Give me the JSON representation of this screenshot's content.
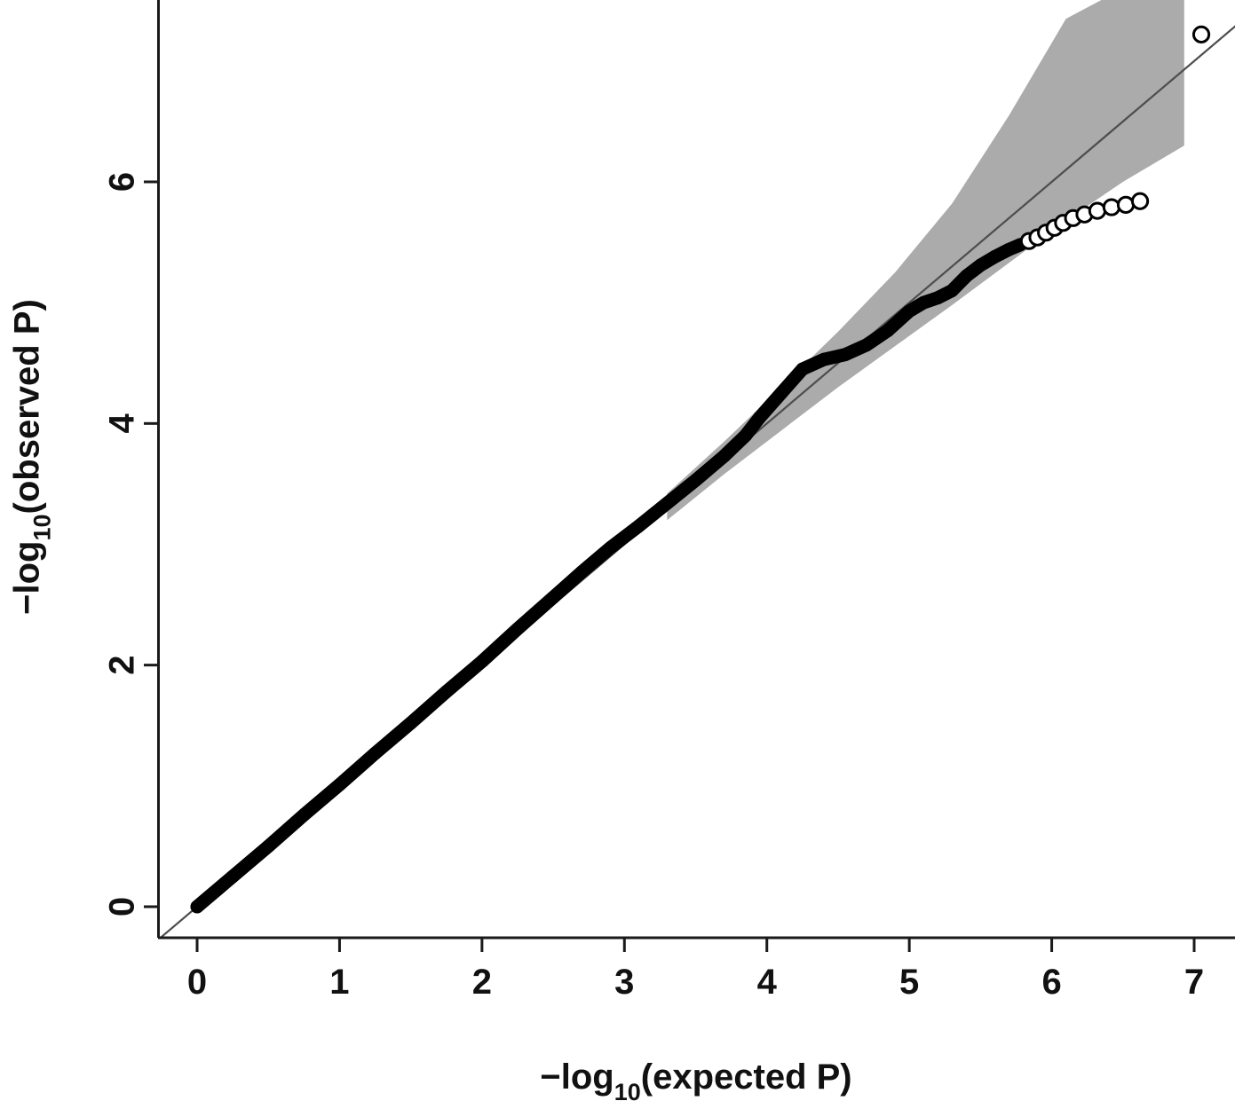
{
  "figure": {
    "kind": "qq-plot",
    "background": "#ffffff"
  },
  "chart_data": {
    "type": "scatter",
    "title": "",
    "xlabel": "−log10(expected P)",
    "ylabel": "−log10(observed P)",
    "xlabel_parts": {
      "prefix": "−log",
      "sub": "10",
      "suffix": "(expected P)"
    },
    "ylabel_parts": {
      "prefix": "−log",
      "sub": "10",
      "suffix": "(observed P)"
    },
    "xlim": [
      -0.27,
      7.29
    ],
    "ylim": [
      -0.28,
      7.5
    ],
    "x_ticks": [
      0,
      1,
      2,
      3,
      4,
      5,
      6,
      7
    ],
    "y_ticks": [
      0,
      2,
      4,
      6
    ],
    "grid": false,
    "legend": null,
    "colors": {
      "point": "#000000",
      "open_point_fill": "#ffffff",
      "band": "#ababab",
      "reference_line": "#4d4d4d",
      "axis": "#1a1a1a",
      "background": "#ffffff"
    },
    "identity_line": {
      "from": [
        -0.27,
        -0.27
      ],
      "to": [
        7.5,
        7.5
      ]
    },
    "confidence_band": {
      "x": [
        3.3,
        3.7,
        4.1,
        4.5,
        4.9,
        5.3,
        5.7,
        6.1,
        6.5,
        6.93
      ],
      "upper": [
        3.42,
        3.85,
        4.3,
        4.76,
        5.25,
        5.82,
        6.55,
        7.35,
        7.6,
        7.6
      ],
      "lower": [
        3.2,
        3.58,
        3.94,
        4.3,
        4.64,
        4.98,
        5.33,
        5.68,
        6.0,
        6.3
      ]
    },
    "series": [
      {
        "name": "observed-quantiles-dense",
        "style": "filled-trail",
        "points": [
          [
            0,
            0
          ],
          [
            0.25,
            0.25
          ],
          [
            0.5,
            0.5
          ],
          [
            0.75,
            0.76
          ],
          [
            1.0,
            1.01
          ],
          [
            1.25,
            1.27
          ],
          [
            1.5,
            1.52
          ],
          [
            1.75,
            1.78
          ],
          [
            2.0,
            2.03
          ],
          [
            2.25,
            2.3
          ],
          [
            2.5,
            2.56
          ],
          [
            2.7,
            2.77
          ],
          [
            2.9,
            2.97
          ],
          [
            3.1,
            3.15
          ],
          [
            3.3,
            3.34
          ],
          [
            3.5,
            3.53
          ],
          [
            3.7,
            3.73
          ],
          [
            3.85,
            3.9
          ],
          [
            3.95,
            4.05
          ],
          [
            4.1,
            4.25
          ],
          [
            4.25,
            4.45
          ],
          [
            4.4,
            4.53
          ],
          [
            4.55,
            4.57
          ],
          [
            4.7,
            4.65
          ],
          [
            4.85,
            4.77
          ],
          [
            5.0,
            4.93
          ],
          [
            5.1,
            5.0
          ],
          [
            5.2,
            5.04
          ],
          [
            5.3,
            5.1
          ],
          [
            5.4,
            5.22
          ],
          [
            5.5,
            5.31
          ],
          [
            5.6,
            5.38
          ],
          [
            5.7,
            5.44
          ],
          [
            5.78,
            5.48
          ]
        ]
      },
      {
        "name": "observed-quantiles-tail",
        "style": "open-circle",
        "points": [
          [
            5.84,
            5.51
          ],
          [
            5.9,
            5.54
          ],
          [
            5.96,
            5.58
          ],
          [
            6.02,
            5.62
          ],
          [
            6.08,
            5.66
          ],
          [
            6.15,
            5.7
          ],
          [
            6.23,
            5.73
          ],
          [
            6.32,
            5.76
          ],
          [
            6.42,
            5.79
          ],
          [
            6.52,
            5.81
          ],
          [
            6.62,
            5.84
          ]
        ]
      },
      {
        "name": "top-outlier",
        "style": "open-circle",
        "points": [
          [
            7.05,
            7.22
          ]
        ]
      }
    ]
  }
}
